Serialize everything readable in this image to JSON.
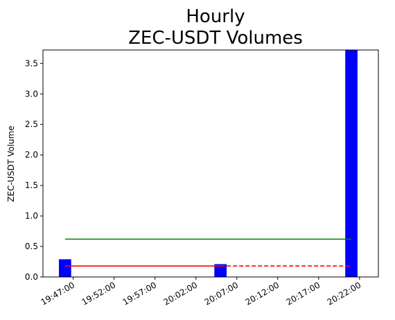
{
  "chart_data": {
    "type": "bar",
    "title_lines": [
      "Hourly",
      "ZEC-USDT Volumes"
    ],
    "xlabel": "",
    "ylabel": "ZEC-USDT Volume",
    "ylim": [
      0,
      3.72
    ],
    "y_ticks": [
      0.0,
      0.5,
      1.0,
      1.5,
      2.0,
      2.5,
      3.0,
      3.5
    ],
    "y_tick_labels": [
      "0.0",
      "0.5",
      "1.0",
      "1.5",
      "2.0",
      "2.5",
      "3.0",
      "3.5"
    ],
    "x_tick_minutes": [
      1187,
      1192,
      1197,
      1202,
      1207,
      1212,
      1217,
      1222
    ],
    "x_tick_labels": [
      "19:47:00",
      "19:52:00",
      "19:57:00",
      "20:02:00",
      "20:07:00",
      "20:12:00",
      "20:17:00",
      "20:22:00"
    ],
    "xlim_minutes": [
      1183.3,
      1224.3
    ],
    "bars": [
      {
        "time": "19:46:00",
        "minute": 1186,
        "value": 0.29
      },
      {
        "time": "20:05:00",
        "minute": 1205,
        "value": 0.21
      },
      {
        "time": "20:21:00",
        "minute": 1221,
        "value": 3.72
      }
    ],
    "lines": [
      {
        "name": "",
        "color": "#008000",
        "style": "solid",
        "value": 0.62,
        "x_from_minute": 1186,
        "x_to_minute": 1221
      },
      {
        "name": "",
        "color": "#ff0000",
        "style": "solid",
        "value": 0.18,
        "x_from_minute": 1186,
        "x_to_minute": 1205
      },
      {
        "name": "",
        "color": "#ff0000",
        "style": "dashed",
        "value": 0.18,
        "x_from_minute": 1205,
        "x_to_minute": 1221
      }
    ],
    "bar_color": "#0000ff",
    "grid": false
  }
}
